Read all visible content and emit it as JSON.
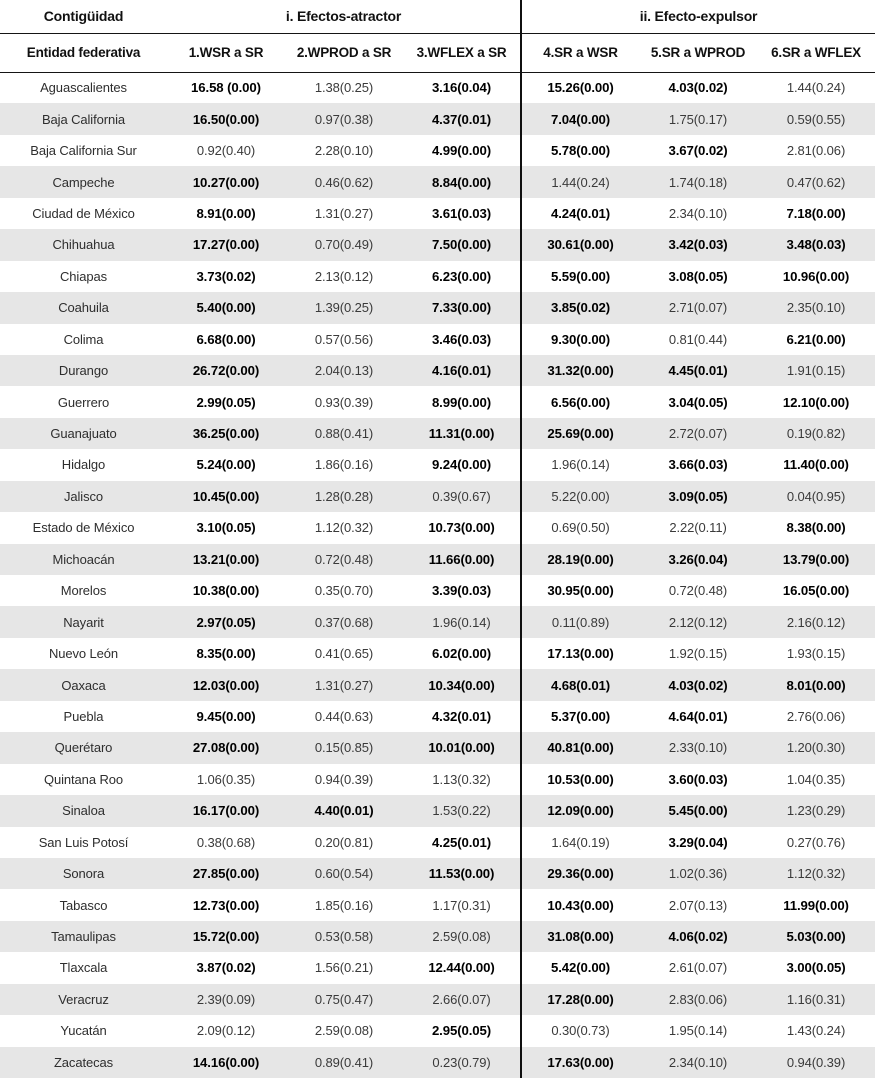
{
  "table": {
    "group_headers": [
      {
        "label": "Contigüidad"
      },
      {
        "label": "i. Efectos-atractor"
      },
      {
        "label": "ii. Efecto-expulsor"
      }
    ],
    "column_headers": [
      "Entidad federativa",
      "1.WSR a SR",
      "2.WPROD a SR",
      "3.WFLEX a SR",
      "4.SR a WSR",
      "5.SR a WPROD",
      "6.SR a WFLEX"
    ],
    "rows": [
      {
        "entity": "Aguascalientes",
        "cells": [
          {
            "text": "16.58 (0.00)",
            "bold": true
          },
          {
            "text": "1.38(0.25)",
            "bold": false
          },
          {
            "text": "3.16(0.04)",
            "bold": true
          },
          {
            "text": "15.26(0.00)",
            "bold": true
          },
          {
            "text": "4.03(0.02)",
            "bold": true
          },
          {
            "text": "1.44(0.24)",
            "bold": false
          }
        ]
      },
      {
        "entity": "Baja California",
        "cells": [
          {
            "text": "16.50(0.00)",
            "bold": true
          },
          {
            "text": "0.97(0.38)",
            "bold": false
          },
          {
            "text": "4.37(0.01)",
            "bold": true
          },
          {
            "text": "7.04(0.00)",
            "bold": true
          },
          {
            "text": "1.75(0.17)",
            "bold": false
          },
          {
            "text": "0.59(0.55)",
            "bold": false
          }
        ]
      },
      {
        "entity": "Baja California Sur",
        "cells": [
          {
            "text": "0.92(0.40)",
            "bold": false
          },
          {
            "text": "2.28(0.10)",
            "bold": false
          },
          {
            "text": "4.99(0.00)",
            "bold": true
          },
          {
            "text": "5.78(0.00)",
            "bold": true
          },
          {
            "text": "3.67(0.02)",
            "bold": true
          },
          {
            "text": "2.81(0.06)",
            "bold": false
          }
        ]
      },
      {
        "entity": "Campeche",
        "cells": [
          {
            "text": "10.27(0.00)",
            "bold": true
          },
          {
            "text": "0.46(0.62)",
            "bold": false
          },
          {
            "text": "8.84(0.00)",
            "bold": true
          },
          {
            "text": "1.44(0.24)",
            "bold": false
          },
          {
            "text": "1.74(0.18)",
            "bold": false
          },
          {
            "text": "0.47(0.62)",
            "bold": false
          }
        ]
      },
      {
        "entity": "Ciudad de México",
        "cells": [
          {
            "text": "8.91(0.00)",
            "bold": true
          },
          {
            "text": "1.31(0.27)",
            "bold": false
          },
          {
            "text": "3.61(0.03)",
            "bold": true
          },
          {
            "text": "4.24(0.01)",
            "bold": true
          },
          {
            "text": "2.34(0.10)",
            "bold": false
          },
          {
            "text": "7.18(0.00)",
            "bold": true
          }
        ]
      },
      {
        "entity": "Chihuahua",
        "cells": [
          {
            "text": "17.27(0.00)",
            "bold": true
          },
          {
            "text": "0.70(0.49)",
            "bold": false
          },
          {
            "text": "7.50(0.00)",
            "bold": true
          },
          {
            "text": "30.61(0.00)",
            "bold": true
          },
          {
            "text": "3.42(0.03)",
            "bold": true
          },
          {
            "text": "3.48(0.03)",
            "bold": true
          }
        ]
      },
      {
        "entity": "Chiapas",
        "cells": [
          {
            "text": "3.73(0.02)",
            "bold": true
          },
          {
            "text": "2.13(0.12)",
            "bold": false
          },
          {
            "text": "6.23(0.00)",
            "bold": true
          },
          {
            "text": "5.59(0.00)",
            "bold": true
          },
          {
            "text": "3.08(0.05)",
            "bold": true
          },
          {
            "text": "10.96(0.00)",
            "bold": true
          }
        ]
      },
      {
        "entity": "Coahuila",
        "cells": [
          {
            "text": "5.40(0.00)",
            "bold": true
          },
          {
            "text": "1.39(0.25)",
            "bold": false
          },
          {
            "text": "7.33(0.00)",
            "bold": true
          },
          {
            "text": "3.85(0.02)",
            "bold": true
          },
          {
            "text": "2.71(0.07)",
            "bold": false
          },
          {
            "text": "2.35(0.10)",
            "bold": false
          }
        ]
      },
      {
        "entity": "Colima",
        "cells": [
          {
            "text": "6.68(0.00)",
            "bold": true
          },
          {
            "text": "0.57(0.56)",
            "bold": false
          },
          {
            "text": "3.46(0.03)",
            "bold": true
          },
          {
            "text": "9.30(0.00)",
            "bold": true
          },
          {
            "text": "0.81(0.44)",
            "bold": false
          },
          {
            "text": "6.21(0.00)",
            "bold": true
          }
        ]
      },
      {
        "entity": "Durango",
        "cells": [
          {
            "text": "26.72(0.00)",
            "bold": true
          },
          {
            "text": "2.04(0.13)",
            "bold": false
          },
          {
            "text": "4.16(0.01)",
            "bold": true
          },
          {
            "text": "31.32(0.00)",
            "bold": true
          },
          {
            "text": "4.45(0.01)",
            "bold": true
          },
          {
            "text": "1.91(0.15)",
            "bold": false
          }
        ]
      },
      {
        "entity": "Guerrero",
        "cells": [
          {
            "text": "2.99(0.05)",
            "bold": true
          },
          {
            "text": "0.93(0.39)",
            "bold": false
          },
          {
            "text": "8.99(0.00)",
            "bold": true
          },
          {
            "text": "6.56(0.00)",
            "bold": true
          },
          {
            "text": "3.04(0.05)",
            "bold": true
          },
          {
            "text": "12.10(0.00)",
            "bold": true
          }
        ]
      },
      {
        "entity": "Guanajuato",
        "cells": [
          {
            "text": "36.25(0.00)",
            "bold": true
          },
          {
            "text": "0.88(0.41)",
            "bold": false
          },
          {
            "text": "11.31(0.00)",
            "bold": true
          },
          {
            "text": "25.69(0.00)",
            "bold": true
          },
          {
            "text": "2.72(0.07)",
            "bold": false
          },
          {
            "text": "0.19(0.82)",
            "bold": false
          }
        ]
      },
      {
        "entity": "Hidalgo",
        "cells": [
          {
            "text": "5.24(0.00)",
            "bold": true
          },
          {
            "text": "1.86(0.16)",
            "bold": false
          },
          {
            "text": "9.24(0.00)",
            "bold": true
          },
          {
            "text": "1.96(0.14)",
            "bold": false
          },
          {
            "text": "3.66(0.03)",
            "bold": true
          },
          {
            "text": "11.40(0.00)",
            "bold": true
          }
        ]
      },
      {
        "entity": "Jalisco",
        "cells": [
          {
            "text": "10.45(0.00)",
            "bold": true
          },
          {
            "text": "1.28(0.28)",
            "bold": false
          },
          {
            "text": "0.39(0.67)",
            "bold": false
          },
          {
            "text": "5.22(0.00)",
            "bold": false
          },
          {
            "text": "3.09(0.05)",
            "bold": true
          },
          {
            "text": "0.04(0.95)",
            "bold": false
          }
        ]
      },
      {
        "entity": "Estado de México",
        "cells": [
          {
            "text": "3.10(0.05)",
            "bold": true
          },
          {
            "text": "1.12(0.32)",
            "bold": false
          },
          {
            "text": "10.73(0.00)",
            "bold": true
          },
          {
            "text": "0.69(0.50)",
            "bold": false
          },
          {
            "text": "2.22(0.11)",
            "bold": false
          },
          {
            "text": "8.38(0.00)",
            "bold": true
          }
        ]
      },
      {
        "entity": "Michoacán",
        "cells": [
          {
            "text": "13.21(0.00)",
            "bold": true
          },
          {
            "text": "0.72(0.48)",
            "bold": false
          },
          {
            "text": "11.66(0.00)",
            "bold": true
          },
          {
            "text": "28.19(0.00)",
            "bold": true
          },
          {
            "text": "3.26(0.04)",
            "bold": true
          },
          {
            "text": "13.79(0.00)",
            "bold": true
          }
        ]
      },
      {
        "entity": "Morelos",
        "cells": [
          {
            "text": "10.38(0.00)",
            "bold": true
          },
          {
            "text": "0.35(0.70)",
            "bold": false
          },
          {
            "text": "3.39(0.03)",
            "bold": true
          },
          {
            "text": "30.95(0.00)",
            "bold": true
          },
          {
            "text": "0.72(0.48)",
            "bold": false
          },
          {
            "text": "16.05(0.00)",
            "bold": true
          }
        ]
      },
      {
        "entity": "Nayarit",
        "cells": [
          {
            "text": "2.97(0.05)",
            "bold": true
          },
          {
            "text": "0.37(0.68)",
            "bold": false
          },
          {
            "text": "1.96(0.14)",
            "bold": false
          },
          {
            "text": "0.11(0.89)",
            "bold": false
          },
          {
            "text": "2.12(0.12)",
            "bold": false
          },
          {
            "text": "2.16(0.12)",
            "bold": false
          }
        ]
      },
      {
        "entity": "Nuevo León",
        "cells": [
          {
            "text": "8.35(0.00)",
            "bold": true
          },
          {
            "text": "0.41(0.65)",
            "bold": false
          },
          {
            "text": "6.02(0.00)",
            "bold": true
          },
          {
            "text": "17.13(0.00)",
            "bold": true
          },
          {
            "text": "1.92(0.15)",
            "bold": false
          },
          {
            "text": "1.93(0.15)",
            "bold": false
          }
        ]
      },
      {
        "entity": "Oaxaca",
        "cells": [
          {
            "text": "12.03(0.00)",
            "bold": true
          },
          {
            "text": "1.31(0.27)",
            "bold": false
          },
          {
            "text": "10.34(0.00)",
            "bold": true
          },
          {
            "text": "4.68(0.01)",
            "bold": true
          },
          {
            "text": "4.03(0.02)",
            "bold": true
          },
          {
            "text": "8.01(0.00)",
            "bold": true
          }
        ]
      },
      {
        "entity": "Puebla",
        "cells": [
          {
            "text": "9.45(0.00)",
            "bold": true
          },
          {
            "text": "0.44(0.63)",
            "bold": false
          },
          {
            "text": "4.32(0.01)",
            "bold": true
          },
          {
            "text": "5.37(0.00)",
            "bold": true
          },
          {
            "text": "4.64(0.01)",
            "bold": true
          },
          {
            "text": "2.76(0.06)",
            "bold": false
          }
        ]
      },
      {
        "entity": "Querétaro",
        "cells": [
          {
            "text": "27.08(0.00)",
            "bold": true
          },
          {
            "text": "0.15(0.85)",
            "bold": false
          },
          {
            "text": "10.01(0.00)",
            "bold": true
          },
          {
            "text": "40.81(0.00)",
            "bold": true
          },
          {
            "text": "2.33(0.10)",
            "bold": false
          },
          {
            "text": "1.20(0.30)",
            "bold": false
          }
        ]
      },
      {
        "entity": "Quintana Roo",
        "cells": [
          {
            "text": "1.06(0.35)",
            "bold": false
          },
          {
            "text": "0.94(0.39)",
            "bold": false
          },
          {
            "text": "1.13(0.32)",
            "bold": false
          },
          {
            "text": "10.53(0.00)",
            "bold": true
          },
          {
            "text": "3.60(0.03)",
            "bold": true
          },
          {
            "text": "1.04(0.35)",
            "bold": false
          }
        ]
      },
      {
        "entity": "Sinaloa",
        "cells": [
          {
            "text": "16.17(0.00)",
            "bold": true
          },
          {
            "text": "4.40(0.01)",
            "bold": true
          },
          {
            "text": "1.53(0.22)",
            "bold": false
          },
          {
            "text": "12.09(0.00)",
            "bold": true
          },
          {
            "text": "5.45(0.00)",
            "bold": true
          },
          {
            "text": "1.23(0.29)",
            "bold": false
          }
        ]
      },
      {
        "entity": "San Luis Potosí",
        "cells": [
          {
            "text": "0.38(0.68)",
            "bold": false
          },
          {
            "text": "0.20(0.81)",
            "bold": false
          },
          {
            "text": "4.25(0.01)",
            "bold": true
          },
          {
            "text": "1.64(0.19)",
            "bold": false
          },
          {
            "text": "3.29(0.04)",
            "bold": true
          },
          {
            "text": "0.27(0.76)",
            "bold": false
          }
        ]
      },
      {
        "entity": "Sonora",
        "cells": [
          {
            "text": "27.85(0.00)",
            "bold": true
          },
          {
            "text": "0.60(0.54)",
            "bold": false
          },
          {
            "text": "11.53(0.00)",
            "bold": true
          },
          {
            "text": "29.36(0.00)",
            "bold": true
          },
          {
            "text": "1.02(0.36)",
            "bold": false
          },
          {
            "text": "1.12(0.32)",
            "bold": false
          }
        ]
      },
      {
        "entity": "Tabasco",
        "cells": [
          {
            "text": "12.73(0.00)",
            "bold": true
          },
          {
            "text": "1.85(0.16)",
            "bold": false
          },
          {
            "text": "1.17(0.31)",
            "bold": false
          },
          {
            "text": "10.43(0.00)",
            "bold": true
          },
          {
            "text": "2.07(0.13)",
            "bold": false
          },
          {
            "text": "11.99(0.00)",
            "bold": true
          }
        ]
      },
      {
        "entity": "Tamaulipas",
        "cells": [
          {
            "text": "15.72(0.00)",
            "bold": true
          },
          {
            "text": "0.53(0.58)",
            "bold": false
          },
          {
            "text": "2.59(0.08)",
            "bold": false
          },
          {
            "text": "31.08(0.00)",
            "bold": true
          },
          {
            "text": "4.06(0.02)",
            "bold": true
          },
          {
            "text": "5.03(0.00)",
            "bold": true
          }
        ]
      },
      {
        "entity": "Tlaxcala",
        "cells": [
          {
            "text": "3.87(0.02)",
            "bold": true
          },
          {
            "text": "1.56(0.21)",
            "bold": false
          },
          {
            "text": "12.44(0.00)",
            "bold": true
          },
          {
            "text": "5.42(0.00)",
            "bold": true
          },
          {
            "text": "2.61(0.07)",
            "bold": false
          },
          {
            "text": "3.00(0.05)",
            "bold": true
          }
        ]
      },
      {
        "entity": "Veracruz",
        "cells": [
          {
            "text": "2.39(0.09)",
            "bold": false
          },
          {
            "text": "0.75(0.47)",
            "bold": false
          },
          {
            "text": "2.66(0.07)",
            "bold": false
          },
          {
            "text": "17.28(0.00)",
            "bold": true
          },
          {
            "text": "2.83(0.06)",
            "bold": false
          },
          {
            "text": "1.16(0.31)",
            "bold": false
          }
        ]
      },
      {
        "entity": "Yucatán",
        "cells": [
          {
            "text": "2.09(0.12)",
            "bold": false
          },
          {
            "text": "2.59(0.08)",
            "bold": false
          },
          {
            "text": "2.95(0.05)",
            "bold": true
          },
          {
            "text": "0.30(0.73)",
            "bold": false
          },
          {
            "text": "1.95(0.14)",
            "bold": false
          },
          {
            "text": "1.43(0.24)",
            "bold": false
          }
        ]
      },
      {
        "entity": "Zacatecas",
        "cells": [
          {
            "text": "14.16(0.00)",
            "bold": true
          },
          {
            "text": "0.89(0.41)",
            "bold": false
          },
          {
            "text": "0.23(0.79)",
            "bold": false
          },
          {
            "text": "17.63(0.00)",
            "bold": true
          },
          {
            "text": "2.34(0.10)",
            "bold": false
          },
          {
            "text": "0.94(0.39)",
            "bold": false
          }
        ]
      }
    ]
  },
  "colors": {
    "stripe": "#e6e6e6",
    "text": "#1d1d1d",
    "rule": "#151515"
  }
}
